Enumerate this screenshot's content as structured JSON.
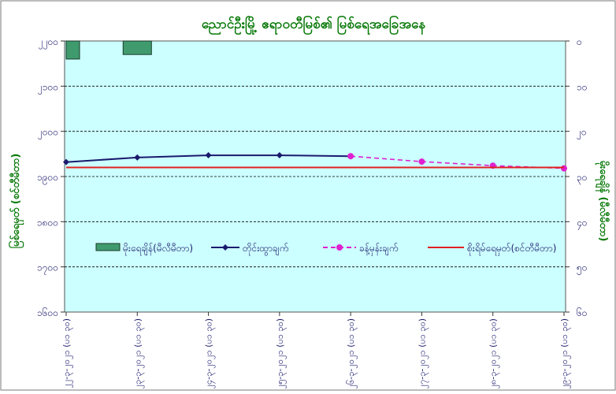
{
  "chart_data": {
    "type": "line",
    "title": "ညောင်ဦးမြို့ ဧရာဝတီမြစ်၏ မြစ်ရေအခြေအနေ",
    "ylabel_left": "မြစ်ရေမှတ် (စင်တီမီတာ)",
    "ylabel_right": "မိုးရေချိန် (မီလီမီတာ)",
    "categories": [
      "၂၂-၃-၂၀၂၁ (ပ၁ ၃၀)",
      "၂၃-၃-၂၀၂၁ (ပ၁ ၃၀)",
      "၂၄-၃-၂၀၂၁ (ပ၁ ၃၀)",
      "၂၅-၃-၂၀၂၁ (ပ၁ ၃၀)",
      "၂၆-၃-၂၀၂၁ (ပ၁ ၃၀)",
      "၂၇-၃-၂၀၂၁ (ပ၁ ၃၀)",
      "၂၈-၃-၂၀၂၁ (ပ၁ ၃၀)",
      "၂၉-၃-၂၀၂၁ (ပ၁ ၃၀)"
    ],
    "left_axis": {
      "min": 1600,
      "max": 2200,
      "step": 100,
      "tick_labels": [
        "၁၆၀၀",
        "၁၇၀၀",
        "၁၈၀၀",
        "၁၉၀၀",
        "၂၀၀၀",
        "၂၁၀၀",
        "၂၂၀၀"
      ]
    },
    "right_axis": {
      "min": 0,
      "max": 60,
      "step": 10,
      "inverted": true,
      "tick_labels": [
        "၀",
        "၁၀",
        "၂၀",
        "၃၀",
        "၄၀",
        "၅၀",
        "၆၀"
      ]
    },
    "grid": true,
    "legend_placement": "center",
    "series": [
      {
        "name": "မိုးရေချိန်(မီလီမီတာ)",
        "type": "bar",
        "axis": "right",
        "color": "#3f9b6e",
        "values": [
          4,
          3,
          null,
          null,
          null,
          null,
          null,
          null
        ]
      },
      {
        "name": "တိုင်းထွာချက်",
        "type": "line",
        "axis": "left",
        "color": "#1a1a6e",
        "marker": "diamond",
        "values": [
          1932,
          1942,
          1947,
          1947,
          1945,
          null,
          null,
          null
        ]
      },
      {
        "name": "ခန့်မှန်းချက်",
        "type": "line",
        "axis": "left",
        "color": "#e020d0",
        "marker": "circle",
        "dashed": true,
        "values": [
          null,
          null,
          null,
          null,
          1945,
          1933,
          1924,
          1918
        ]
      },
      {
        "name": "စိုးရိမ်ရေမှတ်(စင်တီမီတာ)",
        "type": "line",
        "axis": "left",
        "color": "#e02020",
        "values": [
          1920,
          1920,
          1920,
          1920,
          1920,
          1920,
          1920,
          1920
        ]
      }
    ]
  }
}
